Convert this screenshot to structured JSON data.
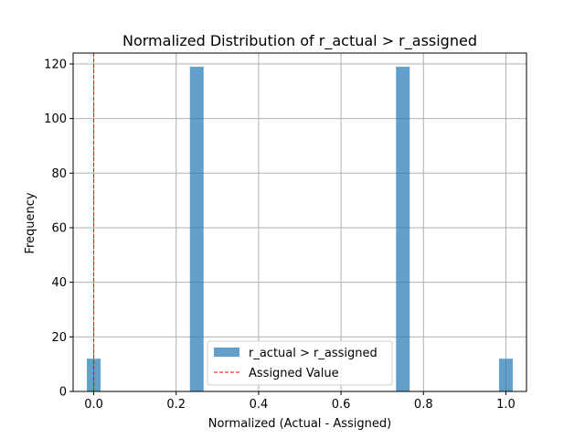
{
  "chart_data": {
    "type": "bar",
    "title": "Normalized Distribution of r_actual > r_assigned",
    "xlabel": "Normalized (Actual - Assigned)",
    "ylabel": "Frequency",
    "xlim": [
      -0.05,
      1.05
    ],
    "ylim": [
      0,
      124
    ],
    "xticks": [
      0.0,
      0.2,
      0.4,
      0.6,
      0.8,
      1.0
    ],
    "xtick_labels": [
      "0.0",
      "0.2",
      "0.4",
      "0.6",
      "0.8",
      "1.0"
    ],
    "yticks": [
      0,
      20,
      40,
      60,
      80,
      100,
      120
    ],
    "ytick_labels": [
      "0",
      "20",
      "40",
      "60",
      "80",
      "100",
      "120"
    ],
    "grid": true,
    "bar_width": 0.0333,
    "bars": [
      {
        "x": 0.0,
        "value": 12
      },
      {
        "x": 0.25,
        "value": 119
      },
      {
        "x": 0.75,
        "value": 119
      },
      {
        "x": 1.0,
        "value": 12
      }
    ],
    "reference_line": {
      "x": 0.0,
      "label": "Assigned Value",
      "style": "dashed",
      "color": "#ff0000"
    },
    "series": [
      {
        "name": "r_actual > r_assigned",
        "color": "#1f77b4",
        "alpha": 0.7
      }
    ],
    "legend": {
      "placement": "bottom-center",
      "entries": [
        "r_actual > r_assigned",
        "Assigned Value"
      ]
    }
  }
}
